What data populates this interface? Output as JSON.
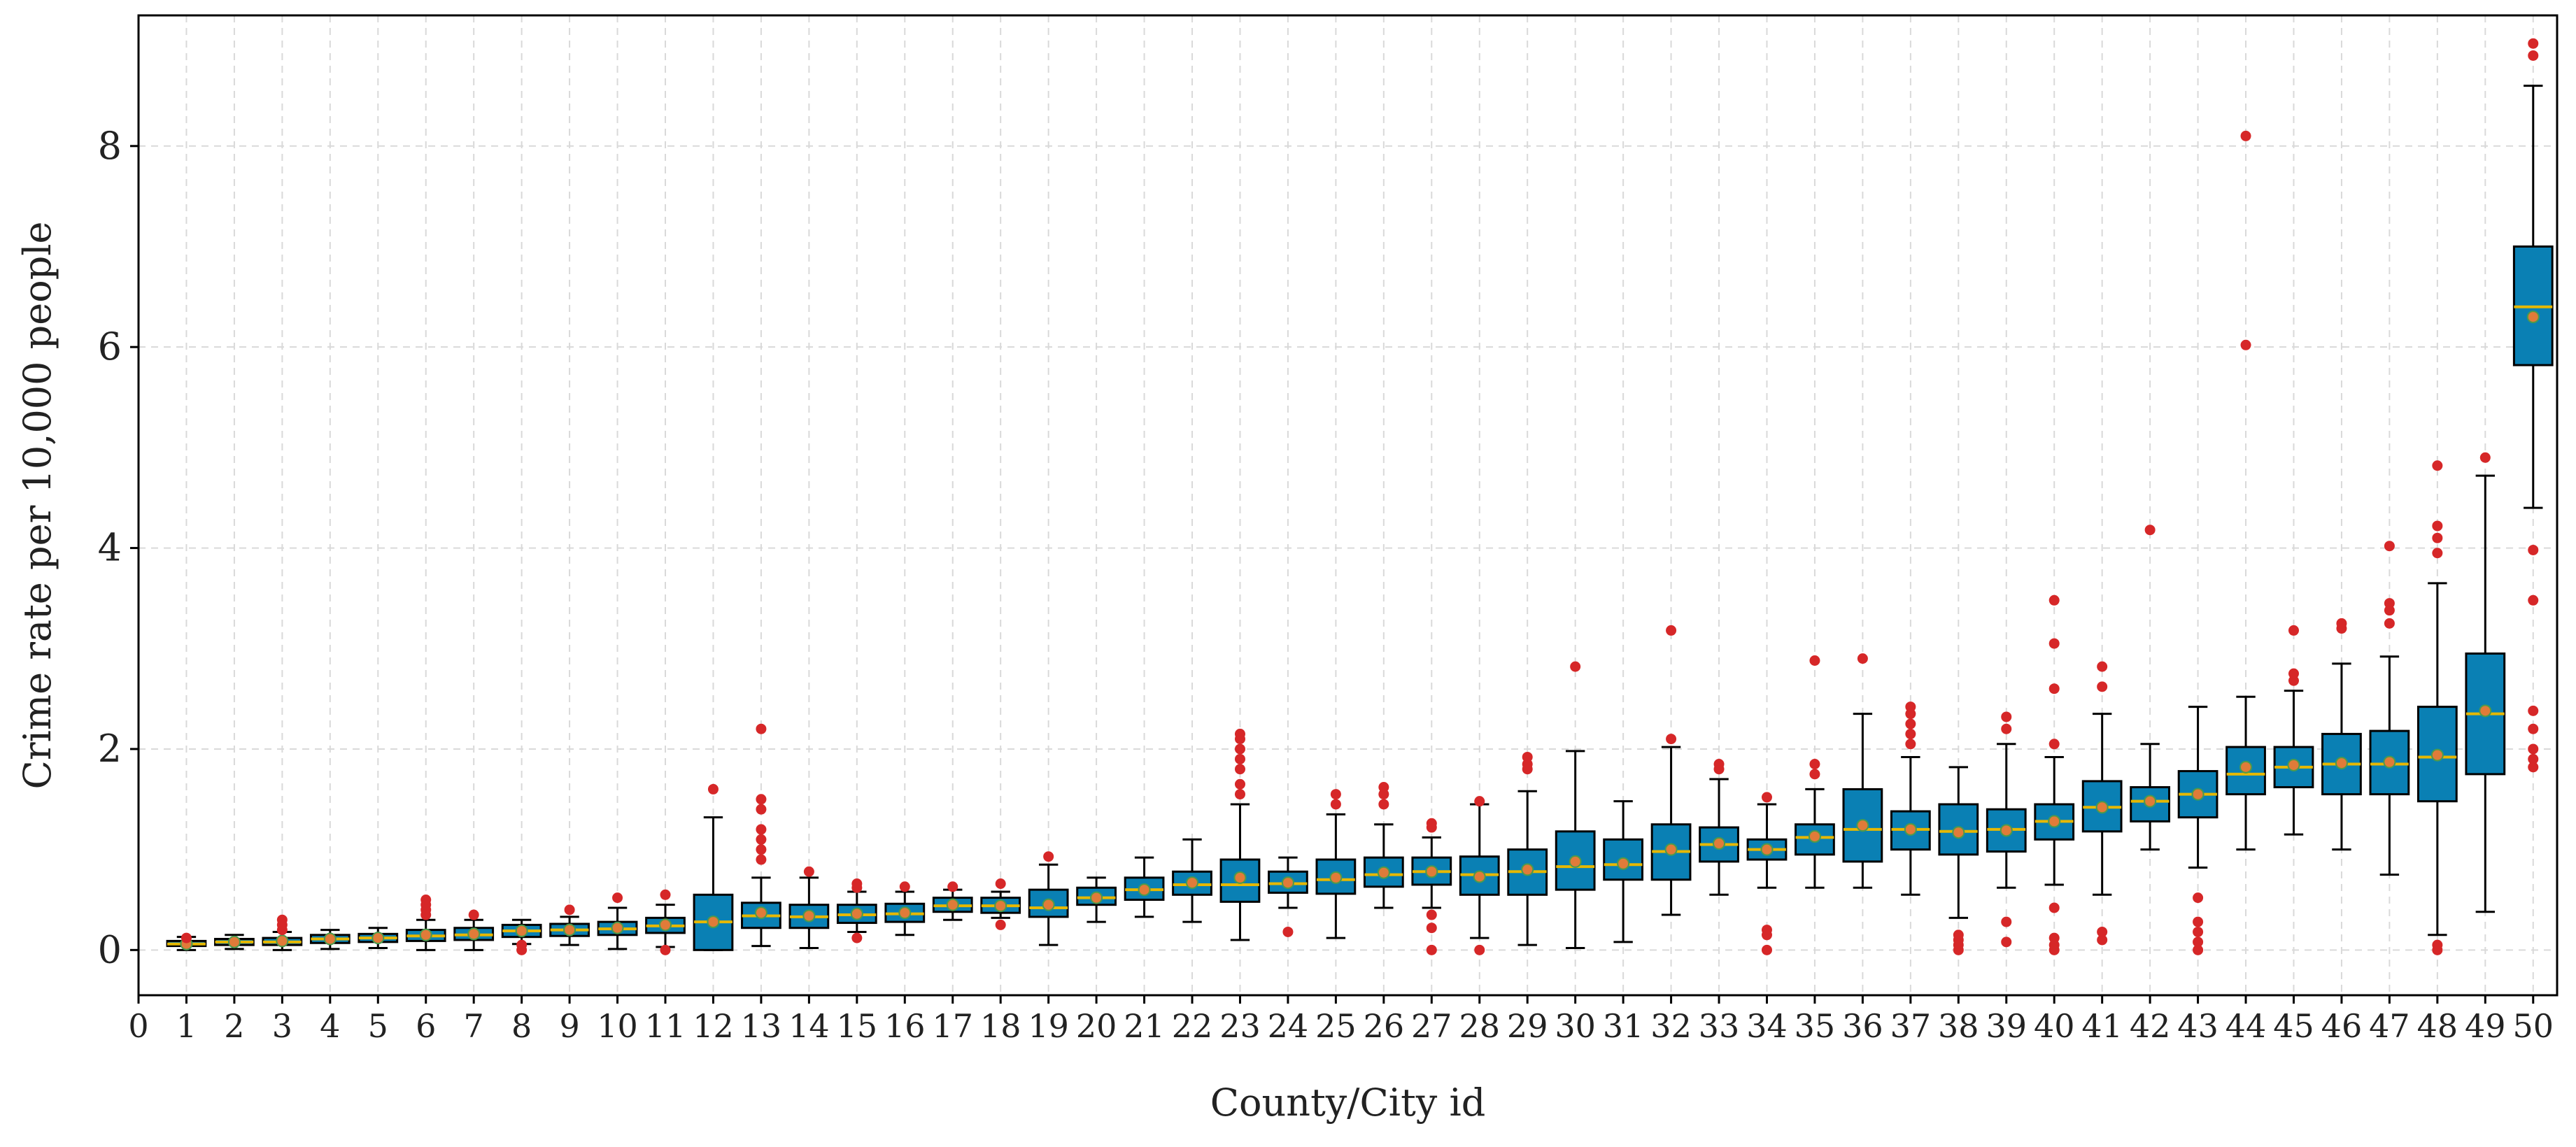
{
  "colors": {
    "box_fill": "#0a80b4",
    "box_edge": "#000000",
    "whisker": "#000000",
    "median": "#e6b800",
    "mean_marker": "#e07b39",
    "outlier": "#d62728",
    "grid": "#d9d9d9",
    "axis": "#000000",
    "background": "#ffffff"
  },
  "chart_data": {
    "type": "box",
    "title": "",
    "xlabel": "County/City id",
    "ylabel": "Crime rate per 10,000 people",
    "xlim": [
      0,
      50.5
    ],
    "ylim": [
      -0.45,
      9.3
    ],
    "x_ticks": [
      "0",
      "1",
      "2",
      "3",
      "4",
      "5",
      "6",
      "7",
      "8",
      "9",
      "10",
      "11",
      "12",
      "13",
      "14",
      "15",
      "16",
      "17",
      "18",
      "19",
      "20",
      "21",
      "22",
      "23",
      "24",
      "25",
      "26",
      "27",
      "28",
      "29",
      "30",
      "31",
      "32",
      "33",
      "34",
      "35",
      "36",
      "37",
      "38",
      "39",
      "40",
      "41",
      "42",
      "43",
      "44",
      "45",
      "46",
      "47",
      "48",
      "49",
      "50"
    ],
    "y_ticks": [
      0,
      2,
      4,
      6,
      8
    ],
    "y_tick_labels": [
      "0",
      "2",
      "4",
      "6",
      "8"
    ],
    "grid": true,
    "legend": "none",
    "boxes": [
      {
        "id": 1,
        "q1": 0.04,
        "median": 0.06,
        "q3": 0.09,
        "whislo": 0.0,
        "whishi": 0.13,
        "mean": 0.06,
        "fliers": [
          0.12
        ]
      },
      {
        "id": 2,
        "q1": 0.05,
        "median": 0.08,
        "q3": 0.11,
        "whislo": 0.01,
        "whishi": 0.15,
        "mean": 0.08,
        "fliers": []
      },
      {
        "id": 3,
        "q1": 0.05,
        "median": 0.08,
        "q3": 0.12,
        "whislo": 0.0,
        "whishi": 0.18,
        "mean": 0.09,
        "fliers": [
          0.2,
          0.25,
          0.3
        ]
      },
      {
        "id": 4,
        "q1": 0.07,
        "median": 0.11,
        "q3": 0.15,
        "whislo": 0.01,
        "whishi": 0.2,
        "mean": 0.11,
        "fliers": []
      },
      {
        "id": 5,
        "q1": 0.08,
        "median": 0.12,
        "q3": 0.16,
        "whislo": 0.02,
        "whishi": 0.22,
        "mean": 0.12,
        "fliers": []
      },
      {
        "id": 6,
        "q1": 0.09,
        "median": 0.14,
        "q3": 0.2,
        "whislo": 0.0,
        "whishi": 0.3,
        "mean": 0.15,
        "fliers": [
          0.35,
          0.4,
          0.45,
          0.5
        ]
      },
      {
        "id": 7,
        "q1": 0.1,
        "median": 0.15,
        "q3": 0.22,
        "whislo": 0.0,
        "whishi": 0.3,
        "mean": 0.16,
        "fliers": [
          0.35
        ]
      },
      {
        "id": 8,
        "q1": 0.13,
        "median": 0.19,
        "q3": 0.25,
        "whislo": 0.06,
        "whishi": 0.3,
        "mean": 0.19,
        "fliers": [
          0.0,
          0.05
        ]
      },
      {
        "id": 9,
        "q1": 0.14,
        "median": 0.2,
        "q3": 0.26,
        "whislo": 0.05,
        "whishi": 0.33,
        "mean": 0.2,
        "fliers": [
          0.4
        ]
      },
      {
        "id": 10,
        "q1": 0.15,
        "median": 0.21,
        "q3": 0.28,
        "whislo": 0.01,
        "whishi": 0.42,
        "mean": 0.22,
        "fliers": [
          0.52
        ]
      },
      {
        "id": 11,
        "q1": 0.17,
        "median": 0.24,
        "q3": 0.32,
        "whislo": 0.03,
        "whishi": 0.45,
        "mean": 0.25,
        "fliers": [
          0.0,
          0.55
        ]
      },
      {
        "id": 12,
        "q1": 0.0,
        "median": 0.28,
        "q3": 0.55,
        "whislo": 0.0,
        "whishi": 1.32,
        "mean": 0.28,
        "fliers": [
          1.6
        ]
      },
      {
        "id": 13,
        "q1": 0.22,
        "median": 0.34,
        "q3": 0.47,
        "whislo": 0.04,
        "whishi": 0.72,
        "mean": 0.37,
        "fliers": [
          0.9,
          1.0,
          1.1,
          1.2,
          1.4,
          1.5,
          2.2
        ]
      },
      {
        "id": 14,
        "q1": 0.22,
        "median": 0.33,
        "q3": 0.45,
        "whislo": 0.02,
        "whishi": 0.72,
        "mean": 0.34,
        "fliers": [
          0.78
        ]
      },
      {
        "id": 15,
        "q1": 0.27,
        "median": 0.35,
        "q3": 0.45,
        "whislo": 0.18,
        "whishi": 0.58,
        "mean": 0.36,
        "fliers": [
          0.12,
          0.62,
          0.66
        ]
      },
      {
        "id": 16,
        "q1": 0.28,
        "median": 0.36,
        "q3": 0.46,
        "whislo": 0.15,
        "whishi": 0.58,
        "mean": 0.37,
        "fliers": [
          0.63
        ]
      },
      {
        "id": 17,
        "q1": 0.38,
        "median": 0.44,
        "q3": 0.52,
        "whislo": 0.3,
        "whishi": 0.6,
        "mean": 0.45,
        "fliers": [
          0.63
        ]
      },
      {
        "id": 18,
        "q1": 0.37,
        "median": 0.44,
        "q3": 0.52,
        "whislo": 0.32,
        "whishi": 0.58,
        "mean": 0.44,
        "fliers": [
          0.25,
          0.66
        ]
      },
      {
        "id": 19,
        "q1": 0.33,
        "median": 0.42,
        "q3": 0.6,
        "whislo": 0.05,
        "whishi": 0.85,
        "mean": 0.45,
        "fliers": [
          0.93
        ]
      },
      {
        "id": 20,
        "q1": 0.45,
        "median": 0.52,
        "q3": 0.62,
        "whislo": 0.28,
        "whishi": 0.72,
        "mean": 0.52,
        "fliers": []
      },
      {
        "id": 21,
        "q1": 0.5,
        "median": 0.6,
        "q3": 0.72,
        "whislo": 0.33,
        "whishi": 0.92,
        "mean": 0.6,
        "fliers": []
      },
      {
        "id": 22,
        "q1": 0.55,
        "median": 0.65,
        "q3": 0.78,
        "whislo": 0.28,
        "whishi": 1.1,
        "mean": 0.67,
        "fliers": []
      },
      {
        "id": 23,
        "q1": 0.48,
        "median": 0.65,
        "q3": 0.9,
        "whislo": 0.1,
        "whishi": 1.45,
        "mean": 0.72,
        "fliers": [
          1.55,
          1.65,
          1.8,
          1.9,
          2.0,
          2.1,
          2.15
        ]
      },
      {
        "id": 24,
        "q1": 0.57,
        "median": 0.66,
        "q3": 0.78,
        "whislo": 0.42,
        "whishi": 0.92,
        "mean": 0.67,
        "fliers": [
          0.18
        ]
      },
      {
        "id": 25,
        "q1": 0.56,
        "median": 0.7,
        "q3": 0.9,
        "whislo": 0.12,
        "whishi": 1.35,
        "mean": 0.72,
        "fliers": [
          1.45,
          1.55
        ]
      },
      {
        "id": 26,
        "q1": 0.63,
        "median": 0.75,
        "q3": 0.92,
        "whislo": 0.42,
        "whishi": 1.25,
        "mean": 0.77,
        "fliers": [
          1.45,
          1.55,
          1.62
        ]
      },
      {
        "id": 27,
        "q1": 0.65,
        "median": 0.78,
        "q3": 0.92,
        "whislo": 0.42,
        "whishi": 1.12,
        "mean": 0.78,
        "fliers": [
          0.0,
          0.22,
          0.35,
          1.22,
          1.26
        ]
      },
      {
        "id": 28,
        "q1": 0.55,
        "median": 0.75,
        "q3": 0.93,
        "whislo": 0.12,
        "whishi": 1.45,
        "mean": 0.73,
        "fliers": [
          0.0,
          1.48
        ]
      },
      {
        "id": 29,
        "q1": 0.55,
        "median": 0.78,
        "q3": 1.0,
        "whislo": 0.05,
        "whishi": 1.58,
        "mean": 0.8,
        "fliers": [
          1.8,
          1.85,
          1.92
        ]
      },
      {
        "id": 30,
        "q1": 0.6,
        "median": 0.83,
        "q3": 1.18,
        "whislo": 0.02,
        "whishi": 1.98,
        "mean": 0.88,
        "fliers": [
          2.82
        ]
      },
      {
        "id": 31,
        "q1": 0.7,
        "median": 0.85,
        "q3": 1.1,
        "whislo": 0.08,
        "whishi": 1.48,
        "mean": 0.86,
        "fliers": []
      },
      {
        "id": 32,
        "q1": 0.7,
        "median": 0.98,
        "q3": 1.25,
        "whislo": 0.35,
        "whishi": 2.02,
        "mean": 1.0,
        "fliers": [
          2.1,
          3.18
        ]
      },
      {
        "id": 33,
        "q1": 0.88,
        "median": 1.05,
        "q3": 1.22,
        "whislo": 0.55,
        "whishi": 1.7,
        "mean": 1.06,
        "fliers": [
          1.8,
          1.85
        ]
      },
      {
        "id": 34,
        "q1": 0.9,
        "median": 1.0,
        "q3": 1.1,
        "whislo": 0.62,
        "whishi": 1.45,
        "mean": 1.0,
        "fliers": [
          0.0,
          0.15,
          0.2,
          1.52
        ]
      },
      {
        "id": 35,
        "q1": 0.95,
        "median": 1.12,
        "q3": 1.25,
        "whislo": 0.62,
        "whishi": 1.6,
        "mean": 1.13,
        "fliers": [
          1.75,
          1.85,
          2.88
        ]
      },
      {
        "id": 36,
        "q1": 0.88,
        "median": 1.2,
        "q3": 1.6,
        "whislo": 0.62,
        "whishi": 2.35,
        "mean": 1.24,
        "fliers": [
          2.9
        ]
      },
      {
        "id": 37,
        "q1": 1.0,
        "median": 1.2,
        "q3": 1.38,
        "whislo": 0.55,
        "whishi": 1.92,
        "mean": 1.2,
        "fliers": [
          2.05,
          2.15,
          2.25,
          2.35,
          2.42
        ]
      },
      {
        "id": 38,
        "q1": 0.95,
        "median": 1.18,
        "q3": 1.45,
        "whislo": 0.32,
        "whishi": 1.82,
        "mean": 1.17,
        "fliers": [
          0.0,
          0.05,
          0.1,
          0.15
        ]
      },
      {
        "id": 39,
        "q1": 0.98,
        "median": 1.2,
        "q3": 1.4,
        "whislo": 0.62,
        "whishi": 2.05,
        "mean": 1.19,
        "fliers": [
          0.08,
          0.28,
          2.2,
          2.32
        ]
      },
      {
        "id": 40,
        "q1": 1.1,
        "median": 1.28,
        "q3": 1.45,
        "whislo": 0.65,
        "whishi": 1.92,
        "mean": 1.28,
        "fliers": [
          0.0,
          0.05,
          0.12,
          0.42,
          2.05,
          2.6,
          3.05,
          3.48
        ]
      },
      {
        "id": 41,
        "q1": 1.18,
        "median": 1.42,
        "q3": 1.68,
        "whislo": 0.55,
        "whishi": 2.35,
        "mean": 1.42,
        "fliers": [
          0.1,
          0.18,
          2.62,
          2.82
        ]
      },
      {
        "id": 42,
        "q1": 1.28,
        "median": 1.48,
        "q3": 1.62,
        "whislo": 1.0,
        "whishi": 2.05,
        "mean": 1.48,
        "fliers": [
          4.18
        ]
      },
      {
        "id": 43,
        "q1": 1.32,
        "median": 1.55,
        "q3": 1.78,
        "whislo": 0.82,
        "whishi": 2.42,
        "mean": 1.55,
        "fliers": [
          0.0,
          0.08,
          0.18,
          0.28,
          0.52
        ]
      },
      {
        "id": 44,
        "q1": 1.55,
        "median": 1.75,
        "q3": 2.02,
        "whislo": 1.0,
        "whishi": 2.52,
        "mean": 1.82,
        "fliers": [
          6.02,
          8.1
        ]
      },
      {
        "id": 45,
        "q1": 1.62,
        "median": 1.82,
        "q3": 2.02,
        "whislo": 1.15,
        "whishi": 2.58,
        "mean": 1.84,
        "fliers": [
          2.68,
          2.75,
          3.18
        ]
      },
      {
        "id": 46,
        "q1": 1.55,
        "median": 1.85,
        "q3": 2.15,
        "whislo": 1.0,
        "whishi": 2.85,
        "mean": 1.86,
        "fliers": [
          3.2,
          3.25
        ]
      },
      {
        "id": 47,
        "q1": 1.55,
        "median": 1.85,
        "q3": 2.18,
        "whislo": 0.75,
        "whishi": 2.92,
        "mean": 1.87,
        "fliers": [
          3.25,
          3.38,
          3.45,
          4.02
        ]
      },
      {
        "id": 48,
        "q1": 1.48,
        "median": 1.92,
        "q3": 2.42,
        "whislo": 0.15,
        "whishi": 3.65,
        "mean": 1.94,
        "fliers": [
          0.0,
          0.05,
          3.95,
          4.1,
          4.22,
          4.82
        ]
      },
      {
        "id": 49,
        "q1": 1.75,
        "median": 2.35,
        "q3": 2.95,
        "whislo": 0.38,
        "whishi": 4.72,
        "mean": 2.38,
        "fliers": [
          4.9
        ]
      },
      {
        "id": 50,
        "q1": 5.82,
        "median": 6.4,
        "q3": 7.0,
        "whislo": 4.4,
        "whishi": 8.6,
        "mean": 6.3,
        "fliers": [
          1.82,
          1.9,
          2.0,
          2.2,
          2.38,
          3.48,
          3.98,
          8.9,
          9.02
        ]
      }
    ]
  }
}
